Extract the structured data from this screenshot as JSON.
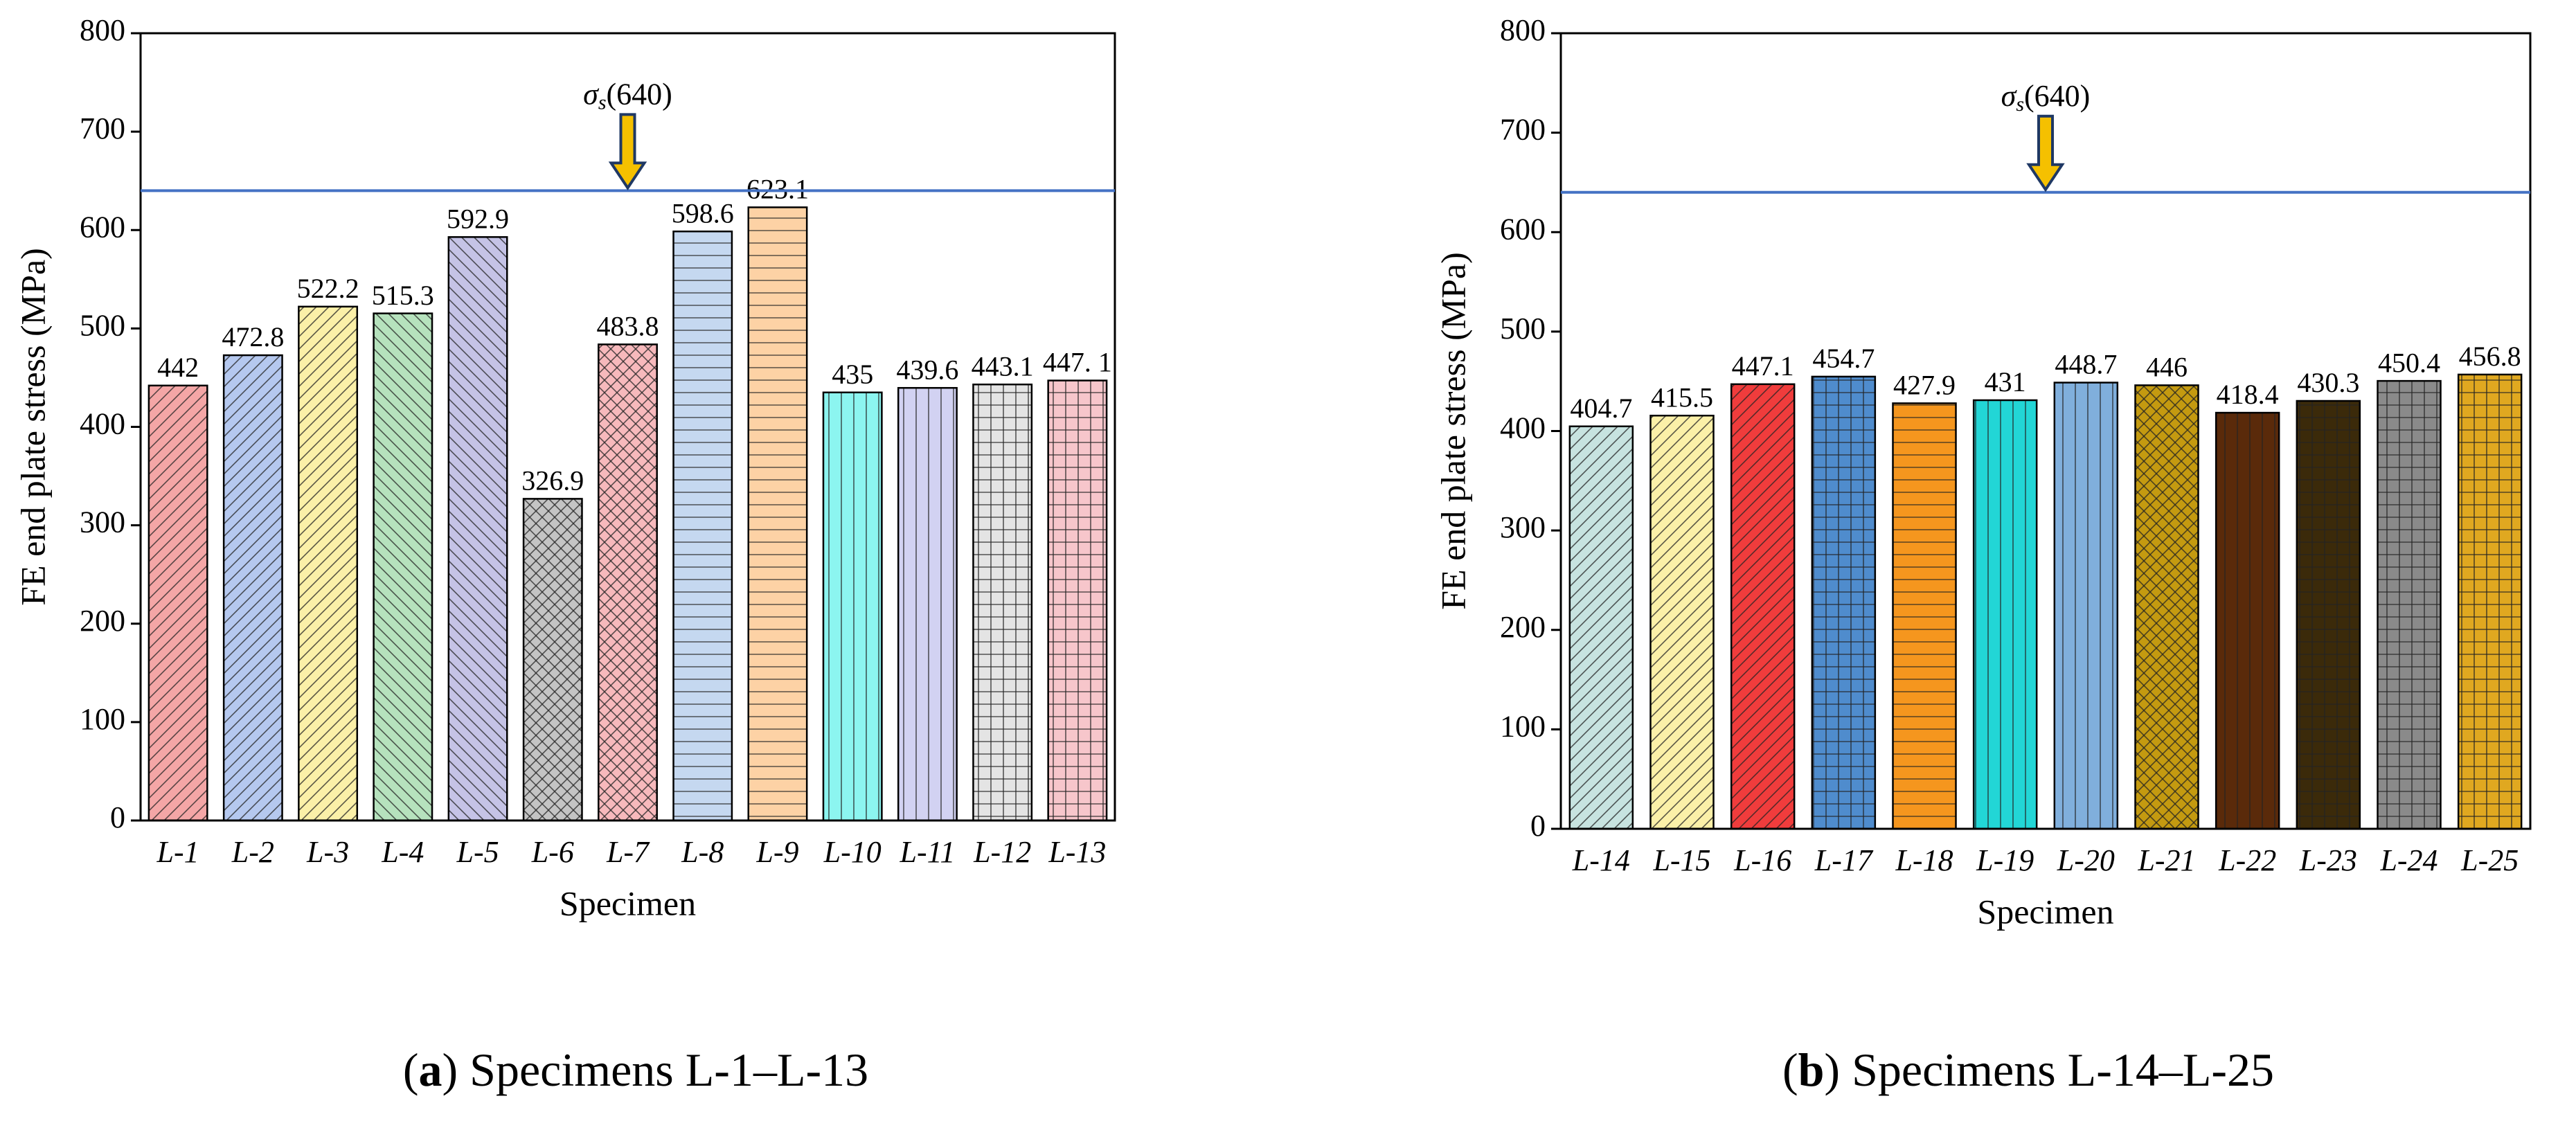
{
  "chart_data": [
    {
      "type": "bar",
      "ylabel": "FE end plate stress (MPa)",
      "xlabel": "Specimen",
      "categories": [
        "L-1",
        "L-2",
        "L-3",
        "L-4",
        "L-5",
        "L-6",
        "L-7",
        "L-8",
        "L-9",
        "L-10",
        "L-11",
        "L-12",
        "L-13"
      ],
      "values": [
        442,
        472.8,
        522.2,
        515.3,
        592.9,
        326.9,
        483.8,
        598.6,
        623.1,
        435,
        439.6,
        443.1,
        447.1
      ],
      "value_labels": [
        "442",
        "472.8",
        "522.2",
        "515.3",
        "592.9",
        "326.9",
        "483.8",
        "598.6",
        "623.1",
        "435",
        "439.6",
        "443.1",
        "447. 1"
      ],
      "colors": [
        "#f4a6a6",
        "#b5c8ef",
        "#fbf0a8",
        "#b6e2bd",
        "#c5c3e6",
        "#c4c4c4",
        "#f7b9bc",
        "#c5d8f0",
        "#fdd2a5",
        "#8cf5f0",
        "#d2d2f2",
        "#e4e4e4",
        "#f7c6cb"
      ],
      "hatches": [
        "diag",
        "diag",
        "diag",
        "back",
        "back",
        "cross",
        "cross",
        "horiz",
        "horiz",
        "vert",
        "vert",
        "grid",
        "grid"
      ],
      "ylim": [
        0,
        800
      ],
      "yticks": [
        0,
        100,
        200,
        300,
        400,
        500,
        600,
        700,
        800
      ],
      "reference": {
        "value": 640,
        "symbol": "σ",
        "subscript": "s",
        "label": "(640)",
        "color": "#4472c4"
      },
      "caption": [
        "(",
        "a",
        ") Specimens L-1–L-13"
      ]
    },
    {
      "type": "bar",
      "ylabel": "FE end plate stress (MPa)",
      "xlabel": "Specimen",
      "categories": [
        "L-14",
        "L-15",
        "L-16",
        "L-17",
        "L-18",
        "L-19",
        "L-20",
        "L-21",
        "L-22",
        "L-23",
        "L-24",
        "L-25"
      ],
      "values": [
        404.7,
        415.5,
        447.1,
        454.7,
        427.9,
        431,
        448.7,
        446,
        418.4,
        430.3,
        450.4,
        456.8
      ],
      "colors": [
        "#c7e3e0",
        "#fbf0a8",
        "#f03c3c",
        "#4f8ccd",
        "#f5961e",
        "#22d6d6",
        "#80afdc",
        "#c49a10",
        "#5a2a0a",
        "#3b2a0a",
        "#8a8a8a",
        "#e0a820"
      ],
      "hatches": [
        "diag",
        "diag",
        "diag",
        "grid",
        "horiz",
        "vert",
        "vert",
        "cross",
        "vert",
        "grid",
        "grid",
        "grid"
      ],
      "ylim": [
        0,
        800
      ],
      "yticks": [
        0,
        100,
        200,
        300,
        400,
        500,
        600,
        700,
        800
      ],
      "reference": {
        "value": 640,
        "symbol": "σ",
        "subscript": "s",
        "label": "(640)",
        "color": "#4472c4"
      },
      "caption": [
        "(",
        "b",
        ") Specimens L-14–L-25"
      ]
    }
  ]
}
